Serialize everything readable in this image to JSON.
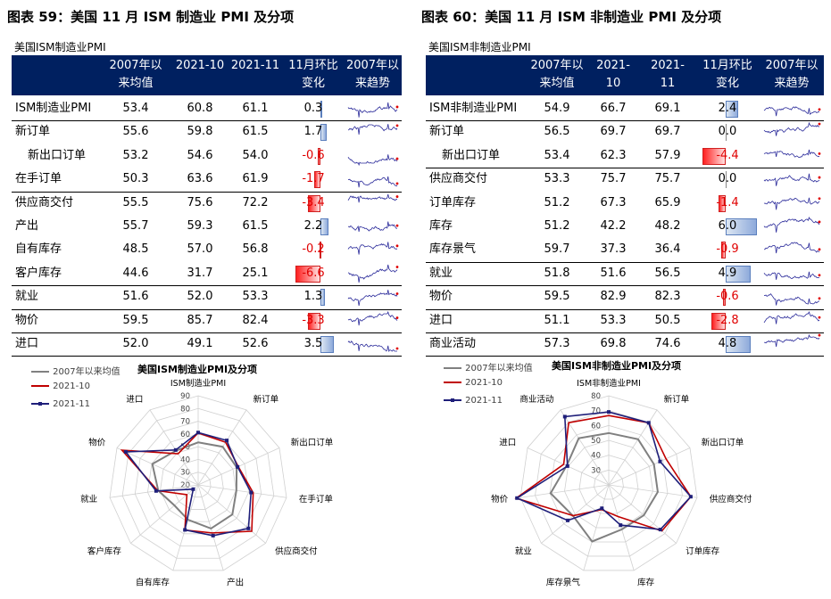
{
  "left": {
    "figure_title": "图表 59：美国 11 月 ISM 制造业 PMI 及分项",
    "table_caption": "美国ISM制造业PMI",
    "columns": [
      "",
      "2007年以\n来均值",
      "2021-10",
      "2021-11",
      "11月环比\n变化",
      "2007年以\n来趋势"
    ],
    "rows": [
      {
        "label": "ISM制造业PMI",
        "indent": false,
        "avg": "53.4",
        "oct": "60.8",
        "nov": "61.1",
        "chg": "0.3",
        "group_end": true
      },
      {
        "label": "新订单",
        "indent": false,
        "avg": "55.6",
        "oct": "59.8",
        "nov": "61.5",
        "chg": "1.7",
        "group_end": false
      },
      {
        "label": "新出口订单",
        "indent": true,
        "avg": "53.2",
        "oct": "54.6",
        "nov": "54.0",
        "chg": "-0.6",
        "group_end": false
      },
      {
        "label": "在手订单",
        "indent": false,
        "avg": "50.3",
        "oct": "63.6",
        "nov": "61.9",
        "chg": "-1.7",
        "group_end": true
      },
      {
        "label": "供应商交付",
        "indent": false,
        "avg": "55.5",
        "oct": "75.6",
        "nov": "72.2",
        "chg": "-3.4",
        "group_end": false
      },
      {
        "label": "产出",
        "indent": false,
        "avg": "55.7",
        "oct": "59.3",
        "nov": "61.5",
        "chg": "2.2",
        "group_end": false
      },
      {
        "label": "自有库存",
        "indent": false,
        "avg": "48.5",
        "oct": "57.0",
        "nov": "56.8",
        "chg": "-0.2",
        "group_end": false
      },
      {
        "label": "客户库存",
        "indent": false,
        "avg": "44.6",
        "oct": "31.7",
        "nov": "25.1",
        "chg": "-6.6",
        "group_end": true
      },
      {
        "label": "就业",
        "indent": false,
        "avg": "51.6",
        "oct": "52.0",
        "nov": "53.3",
        "chg": "1.3",
        "group_end": true
      },
      {
        "label": "物价",
        "indent": false,
        "avg": "59.5",
        "oct": "85.7",
        "nov": "82.4",
        "chg": "-3.3",
        "group_end": true
      },
      {
        "label": "进口",
        "indent": false,
        "avg": "52.0",
        "oct": "49.1",
        "nov": "52.6",
        "chg": "3.5",
        "group_end": true
      }
    ],
    "chart_data": {
      "type": "radar",
      "title": "美国ISM制造业PMI及分项",
      "axes": [
        "ISM制造业PMI",
        "新订单",
        "新出口订单",
        "在手订单",
        "供应商交付",
        "产出",
        "自有库存",
        "客户库存",
        "就业",
        "物价",
        "进口"
      ],
      "rlim": [
        20,
        90
      ],
      "ticks": [
        20,
        30,
        40,
        50,
        60,
        70,
        80,
        90
      ],
      "series": [
        {
          "name": "2007年以来均值",
          "color": "#808080",
          "values": [
            53.4,
            55.6,
            53.2,
            50.3,
            55.5,
            55.7,
            48.5,
            44.6,
            51.6,
            59.5,
            52.0
          ]
        },
        {
          "name": "2021-10",
          "color": "#c00000",
          "values": [
            60.8,
            59.8,
            54.6,
            63.6,
            75.6,
            59.3,
            57.0,
            31.7,
            52.0,
            85.7,
            49.1
          ]
        },
        {
          "name": "2021-11",
          "color": "#1f1f7a",
          "values": [
            61.1,
            61.5,
            54.0,
            61.9,
            72.2,
            61.5,
            56.8,
            25.1,
            53.3,
            82.4,
            52.6
          ]
        }
      ]
    }
  },
  "right": {
    "figure_title": "图表 60：美国 11 月 ISM 非制造业 PMI 及分项",
    "table_caption": "美国ISM非制造业PMI",
    "columns": [
      "",
      "2007年以\n来均值",
      "2021-\n10",
      "2021-\n11",
      "11月环比\n变化",
      "2007年以\n来趋势"
    ],
    "rows": [
      {
        "label": "ISM非制造业PMI",
        "indent": false,
        "avg": "54.9",
        "oct": "66.7",
        "nov": "69.1",
        "chg": "2.4",
        "group_end": true
      },
      {
        "label": "新订单",
        "indent": false,
        "avg": "56.5",
        "oct": "69.7",
        "nov": "69.7",
        "chg": "0.0",
        "group_end": false
      },
      {
        "label": "新出口订单",
        "indent": true,
        "avg": "53.4",
        "oct": "62.3",
        "nov": "57.9",
        "chg": "-4.4",
        "group_end": true
      },
      {
        "label": "供应商交付",
        "indent": false,
        "avg": "53.3",
        "oct": "75.7",
        "nov": "75.7",
        "chg": "0.0",
        "group_end": false
      },
      {
        "label": "订单库存",
        "indent": false,
        "avg": "51.2",
        "oct": "67.3",
        "nov": "65.9",
        "chg": "-1.4",
        "group_end": false
      },
      {
        "label": "库存",
        "indent": false,
        "avg": "51.2",
        "oct": "42.2",
        "nov": "48.2",
        "chg": "6.0",
        "group_end": false
      },
      {
        "label": "库存景气",
        "indent": false,
        "avg": "59.7",
        "oct": "37.3",
        "nov": "36.4",
        "chg": "-0.9",
        "group_end": true
      },
      {
        "label": "就业",
        "indent": false,
        "avg": "51.8",
        "oct": "51.6",
        "nov": "56.5",
        "chg": "4.9",
        "group_end": true
      },
      {
        "label": "物价",
        "indent": false,
        "avg": "59.5",
        "oct": "82.9",
        "nov": "82.3",
        "chg": "-0.6",
        "group_end": true
      },
      {
        "label": "进口",
        "indent": false,
        "avg": "51.1",
        "oct": "53.3",
        "nov": "50.5",
        "chg": "-2.8",
        "group_end": true
      },
      {
        "label": "商业活动",
        "indent": false,
        "avg": "57.3",
        "oct": "69.8",
        "nov": "74.6",
        "chg": "4.8",
        "group_end": true
      }
    ],
    "chart_data": {
      "type": "radar",
      "title": "美国ISM非制造业PMI及分项",
      "axes": [
        "ISM非制造业PMI",
        "新订单",
        "新出口订单",
        "供应商交付",
        "订单库存",
        "库存",
        "库存景气",
        "就业",
        "物价",
        "进口",
        "商业活动"
      ],
      "rlim": [
        20,
        80
      ],
      "ticks": [
        30,
        40,
        50,
        60,
        70,
        80
      ],
      "series": [
        {
          "name": "2007年以来均值",
          "color": "#808080",
          "values": [
            54.9,
            56.5,
            53.4,
            53.3,
            51.2,
            51.2,
            59.7,
            51.8,
            59.5,
            51.1,
            57.3
          ]
        },
        {
          "name": "2021-10",
          "color": "#c00000",
          "values": [
            66.7,
            69.7,
            62.3,
            75.7,
            67.3,
            42.2,
            37.3,
            51.6,
            82.9,
            53.3,
            69.8
          ]
        },
        {
          "name": "2021-11",
          "color": "#1f1f7a",
          "values": [
            69.1,
            69.7,
            57.9,
            75.7,
            65.9,
            48.2,
            36.4,
            56.5,
            82.3,
            50.5,
            74.6
          ]
        }
      ]
    }
  }
}
